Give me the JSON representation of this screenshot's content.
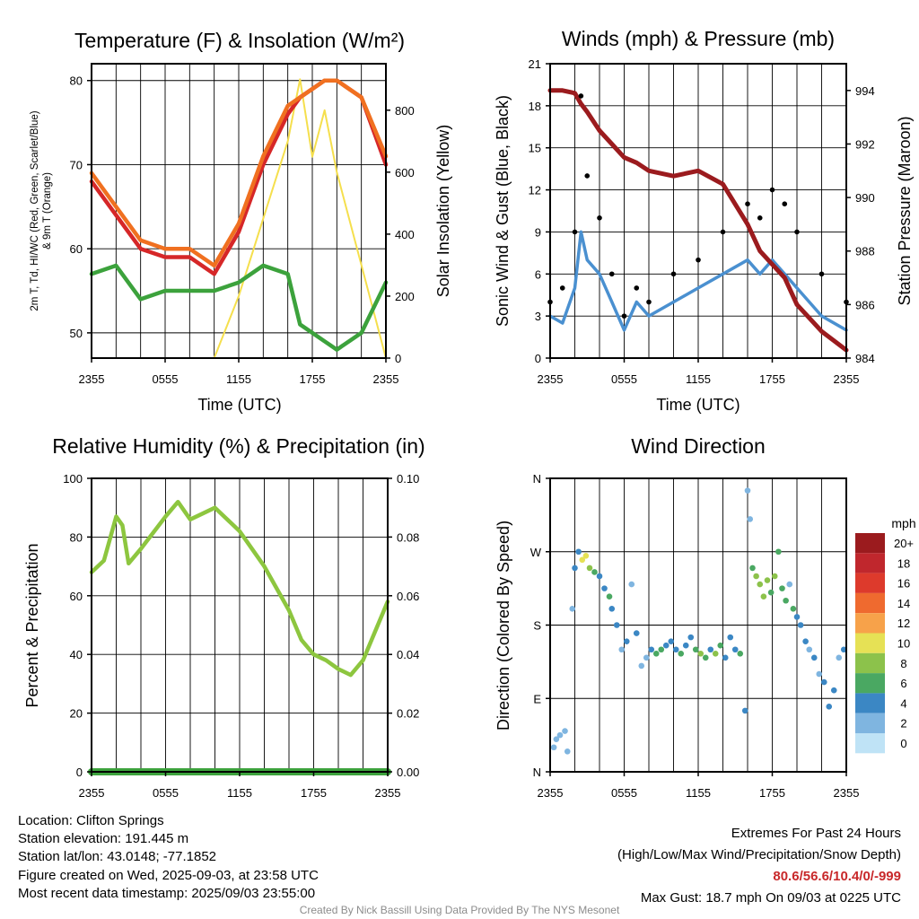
{
  "ticks_time": [
    "2355",
    "0555",
    "1155",
    "1755",
    "2355"
  ],
  "temp_panel": {
    "title": "Temperature (F) & Insolation (W/m²)",
    "xlabel": "Time (UTC)",
    "ylabel_left_1": "2m T, Td, HI/WC (Red, Green, Scarlet/Blue)",
    "ylabel_left_2": "& 9m T (Orange)",
    "ylabel_right": "Solar Insolation (Yellow)",
    "yticks_left": [
      "50",
      "60",
      "70",
      "80"
    ],
    "yticks_right": [
      "0",
      "200",
      "400",
      "600",
      "800"
    ]
  },
  "wind_panel": {
    "title": "Winds (mph) & Pressure (mb)",
    "xlabel": "Time (UTC)",
    "ylabel_left": "Sonic Wind & Gust (Blue, Black)",
    "ylabel_right": "Station Pressure (Maroon)",
    "yticks_left": [
      "0",
      "3",
      "6",
      "9",
      "12",
      "15",
      "18",
      "21"
    ],
    "yticks_right": [
      "984",
      "986",
      "988",
      "990",
      "992",
      "994"
    ]
  },
  "rh_panel": {
    "title": "Relative Humidity (%) & Precipitation (in)",
    "ylabel_left": "Percent & Precipitation",
    "yticks_left": [
      "0",
      "20",
      "40",
      "60",
      "80",
      "100"
    ],
    "yticks_right": [
      "0.00",
      "0.02",
      "0.04",
      "0.06",
      "0.08",
      "0.10"
    ]
  },
  "dir_panel": {
    "title": "Wind Direction",
    "ylabel_left": "Direction (Colored By Speed)",
    "yticks": [
      "N",
      "E",
      "S",
      "W",
      "N"
    ],
    "legend_title": "mph",
    "legend_labels": [
      "20+",
      "18",
      "16",
      "14",
      "12",
      "10",
      "8",
      "6",
      "4",
      "2",
      "0"
    ],
    "legend_colors": [
      "#9b1b1e",
      "#c0272d",
      "#dd3a2c",
      "#ef6a2f",
      "#f7a24a",
      "#e6e155",
      "#8cc24b",
      "#4aa862",
      "#3b87c4",
      "#7fb5e0",
      "#bfe3f6"
    ]
  },
  "chart_data": [
    {
      "type": "line",
      "title": "Temperature (F) & Insolation (W/m²)",
      "xlabel": "Time (UTC)",
      "x_hours": [
        0,
        2,
        4,
        6,
        8,
        10,
        12,
        14,
        16,
        17,
        18,
        19,
        20,
        22,
        24
      ],
      "ylim": [
        47,
        82
      ],
      "y2lim": [
        0,
        950
      ],
      "series": [
        {
          "name": "2m T",
          "color": "#d62728",
          "values": [
            68,
            64,
            60,
            59,
            59,
            57,
            62,
            70,
            76,
            78,
            79,
            80,
            80,
            78,
            70
          ]
        },
        {
          "name": "9m T",
          "color": "#f07020",
          "values": [
            69,
            65,
            61,
            60,
            60,
            58,
            63,
            71,
            77,
            78,
            79,
            80,
            80,
            78,
            71
          ]
        },
        {
          "name": "Td",
          "color": "#3ca23c",
          "values": [
            57,
            58,
            54,
            55,
            55,
            55,
            56,
            58,
            57,
            51,
            50,
            49,
            48,
            50,
            56
          ]
        },
        {
          "name": "Solar Insolation",
          "color": "#f5df4d",
          "axis": "right",
          "values": [
            0,
            0,
            0,
            0,
            0,
            0,
            200,
            450,
            700,
            900,
            650,
            800,
            600,
            300,
            0
          ]
        }
      ]
    },
    {
      "type": "line",
      "title": "Winds (mph) & Pressure (mb)",
      "xlabel": "Time (UTC)",
      "x_hours": [
        0,
        1,
        2,
        2.5,
        3,
        4,
        5,
        6,
        7,
        8,
        10,
        12,
        14,
        16,
        17,
        18,
        19,
        20,
        22,
        24
      ],
      "ylim": [
        0,
        21
      ],
      "y2lim": [
        984,
        995
      ],
      "series": [
        {
          "name": "Sonic Wind",
          "color": "#4a90d0",
          "values": [
            3,
            2.5,
            5,
            9,
            7,
            6,
            4,
            2,
            4,
            3,
            4,
            5,
            6,
            7,
            6,
            7,
            6,
            5,
            3,
            2
          ]
        },
        {
          "name": "Gust",
          "color": "#000000",
          "values": [
            4,
            5,
            9,
            18.7,
            13,
            10,
            6,
            3,
            5,
            4,
            6,
            7,
            9,
            11,
            10,
            12,
            11,
            9,
            6,
            4
          ]
        },
        {
          "name": "Station Pressure",
          "color": "#9b1b1e",
          "axis": "right",
          "values": [
            994,
            994,
            993.9,
            993.5,
            993.2,
            992.5,
            992,
            991.5,
            991.3,
            991,
            990.8,
            991,
            990.5,
            989,
            988,
            987.5,
            987,
            986,
            985,
            984.3
          ]
        }
      ]
    },
    {
      "type": "line",
      "title": "Relative Humidity (%) & Precipitation (in)",
      "x_hours": [
        0,
        1,
        2,
        2.5,
        3,
        4,
        6,
        7,
        8,
        10,
        12,
        14,
        16,
        17,
        18,
        19,
        20,
        21,
        22,
        24
      ],
      "ylim": [
        0,
        100
      ],
      "y2lim": [
        0,
        0.1
      ],
      "series": [
        {
          "name": "Relative Humidity",
          "color": "#8dc63f",
          "values": [
            68,
            72,
            87,
            84,
            71,
            76,
            87,
            92,
            86,
            90,
            82,
            70,
            55,
            45,
            40,
            38,
            35,
            33,
            38,
            58
          ]
        },
        {
          "name": "Precipitation",
          "color": "#3ca23c",
          "values": [
            0,
            0,
            0,
            0,
            0,
            0,
            0,
            0,
            0,
            0,
            0,
            0,
            0,
            0,
            0,
            0,
            0,
            0,
            0,
            0
          ]
        }
      ]
    },
    {
      "type": "scatter",
      "title": "Wind Direction",
      "yticks": [
        "N",
        "E",
        "S",
        "W",
        "N"
      ],
      "ylim": [
        0,
        360
      ],
      "points": [
        {
          "x": 0.3,
          "y": 30,
          "s": 2
        },
        {
          "x": 0.5,
          "y": 40,
          "s": 2
        },
        {
          "x": 0.8,
          "y": 45,
          "s": 1
        },
        {
          "x": 1.2,
          "y": 50,
          "s": 2
        },
        {
          "x": 1.4,
          "y": 25,
          "s": 1
        },
        {
          "x": 1.8,
          "y": 200,
          "s": 1
        },
        {
          "x": 2.0,
          "y": 250,
          "s": 3
        },
        {
          "x": 2.3,
          "y": 270,
          "s": 4
        },
        {
          "x": 2.6,
          "y": 260,
          "s": 10
        },
        {
          "x": 2.9,
          "y": 265,
          "s": 9
        },
        {
          "x": 3.2,
          "y": 250,
          "s": 7
        },
        {
          "x": 3.6,
          "y": 245,
          "s": 6
        },
        {
          "x": 4.0,
          "y": 240,
          "s": 4
        },
        {
          "x": 4.4,
          "y": 225,
          "s": 3
        },
        {
          "x": 4.8,
          "y": 215,
          "s": 5
        },
        {
          "x": 5.0,
          "y": 200,
          "s": 4
        },
        {
          "x": 5.4,
          "y": 180,
          "s": 3
        },
        {
          "x": 5.8,
          "y": 150,
          "s": 2
        },
        {
          "x": 6.2,
          "y": 160,
          "s": 3
        },
        {
          "x": 6.6,
          "y": 230,
          "s": 2
        },
        {
          "x": 7.0,
          "y": 170,
          "s": 4
        },
        {
          "x": 7.4,
          "y": 130,
          "s": 2
        },
        {
          "x": 7.8,
          "y": 140,
          "s": 2
        },
        {
          "x": 8.2,
          "y": 150,
          "s": 3
        },
        {
          "x": 8.6,
          "y": 145,
          "s": 6
        },
        {
          "x": 9.0,
          "y": 150,
          "s": 5
        },
        {
          "x": 9.4,
          "y": 155,
          "s": 4
        },
        {
          "x": 9.8,
          "y": 160,
          "s": 4
        },
        {
          "x": 10.2,
          "y": 150,
          "s": 3
        },
        {
          "x": 10.6,
          "y": 145,
          "s": 5
        },
        {
          "x": 11.0,
          "y": 155,
          "s": 4
        },
        {
          "x": 11.4,
          "y": 165,
          "s": 4
        },
        {
          "x": 11.8,
          "y": 150,
          "s": 6
        },
        {
          "x": 12.2,
          "y": 145,
          "s": 7
        },
        {
          "x": 12.6,
          "y": 140,
          "s": 6
        },
        {
          "x": 13.0,
          "y": 150,
          "s": 4
        },
        {
          "x": 13.4,
          "y": 145,
          "s": 8
        },
        {
          "x": 13.8,
          "y": 155,
          "s": 6
        },
        {
          "x": 14.2,
          "y": 140,
          "s": 4
        },
        {
          "x": 14.6,
          "y": 165,
          "s": 4
        },
        {
          "x": 15.0,
          "y": 150,
          "s": 3
        },
        {
          "x": 15.4,
          "y": 145,
          "s": 6
        },
        {
          "x": 15.8,
          "y": 75,
          "s": 4
        },
        {
          "x": 16.0,
          "y": 345,
          "s": 2
        },
        {
          "x": 16.2,
          "y": 310,
          "s": 2
        },
        {
          "x": 16.4,
          "y": 250,
          "s": 6
        },
        {
          "x": 16.7,
          "y": 240,
          "s": 7
        },
        {
          "x": 17.0,
          "y": 230,
          "s": 8
        },
        {
          "x": 17.3,
          "y": 215,
          "s": 7
        },
        {
          "x": 17.6,
          "y": 235,
          "s": 8
        },
        {
          "x": 17.9,
          "y": 220,
          "s": 6
        },
        {
          "x": 18.2,
          "y": 240,
          "s": 8
        },
        {
          "x": 18.5,
          "y": 270,
          "s": 6
        },
        {
          "x": 18.8,
          "y": 225,
          "s": 6
        },
        {
          "x": 19.1,
          "y": 210,
          "s": 5
        },
        {
          "x": 19.4,
          "y": 230,
          "s": 2
        },
        {
          "x": 19.7,
          "y": 200,
          "s": 6
        },
        {
          "x": 20.0,
          "y": 190,
          "s": 4
        },
        {
          "x": 20.3,
          "y": 180,
          "s": 3
        },
        {
          "x": 20.7,
          "y": 160,
          "s": 4
        },
        {
          "x": 21.0,
          "y": 150,
          "s": 1
        },
        {
          "x": 21.4,
          "y": 140,
          "s": 4
        },
        {
          "x": 21.8,
          "y": 120,
          "s": 2
        },
        {
          "x": 22.2,
          "y": 110,
          "s": 3
        },
        {
          "x": 22.6,
          "y": 80,
          "s": 4
        },
        {
          "x": 23.0,
          "y": 100,
          "s": 3
        },
        {
          "x": 23.4,
          "y": 140,
          "s": 2
        },
        {
          "x": 23.8,
          "y": 150,
          "s": 4
        }
      ]
    }
  ],
  "station": {
    "location": "Location: Clifton Springs",
    "elevation": "Station elevation: 191.445 m",
    "latlon": "Station lat/lon: 43.0148; -77.1852",
    "created": "Figure created on Wed, 2025-09-03, at 23:58 UTC",
    "recent": "Most recent data timestamp: 2025/09/03 23:55:00"
  },
  "extremes": {
    "title": "Extremes For Past 24 Hours",
    "subtitle": "(High/Low/Max Wind/Precipitation/Snow Depth)",
    "values": "80.6/56.6/10.4/0/-999",
    "max_gust": "Max Gust: 18.7 mph On 09/03 at 0225 UTC"
  },
  "credit": "Created By Nick Bassill Using Data Provided By The NYS Mesonet"
}
